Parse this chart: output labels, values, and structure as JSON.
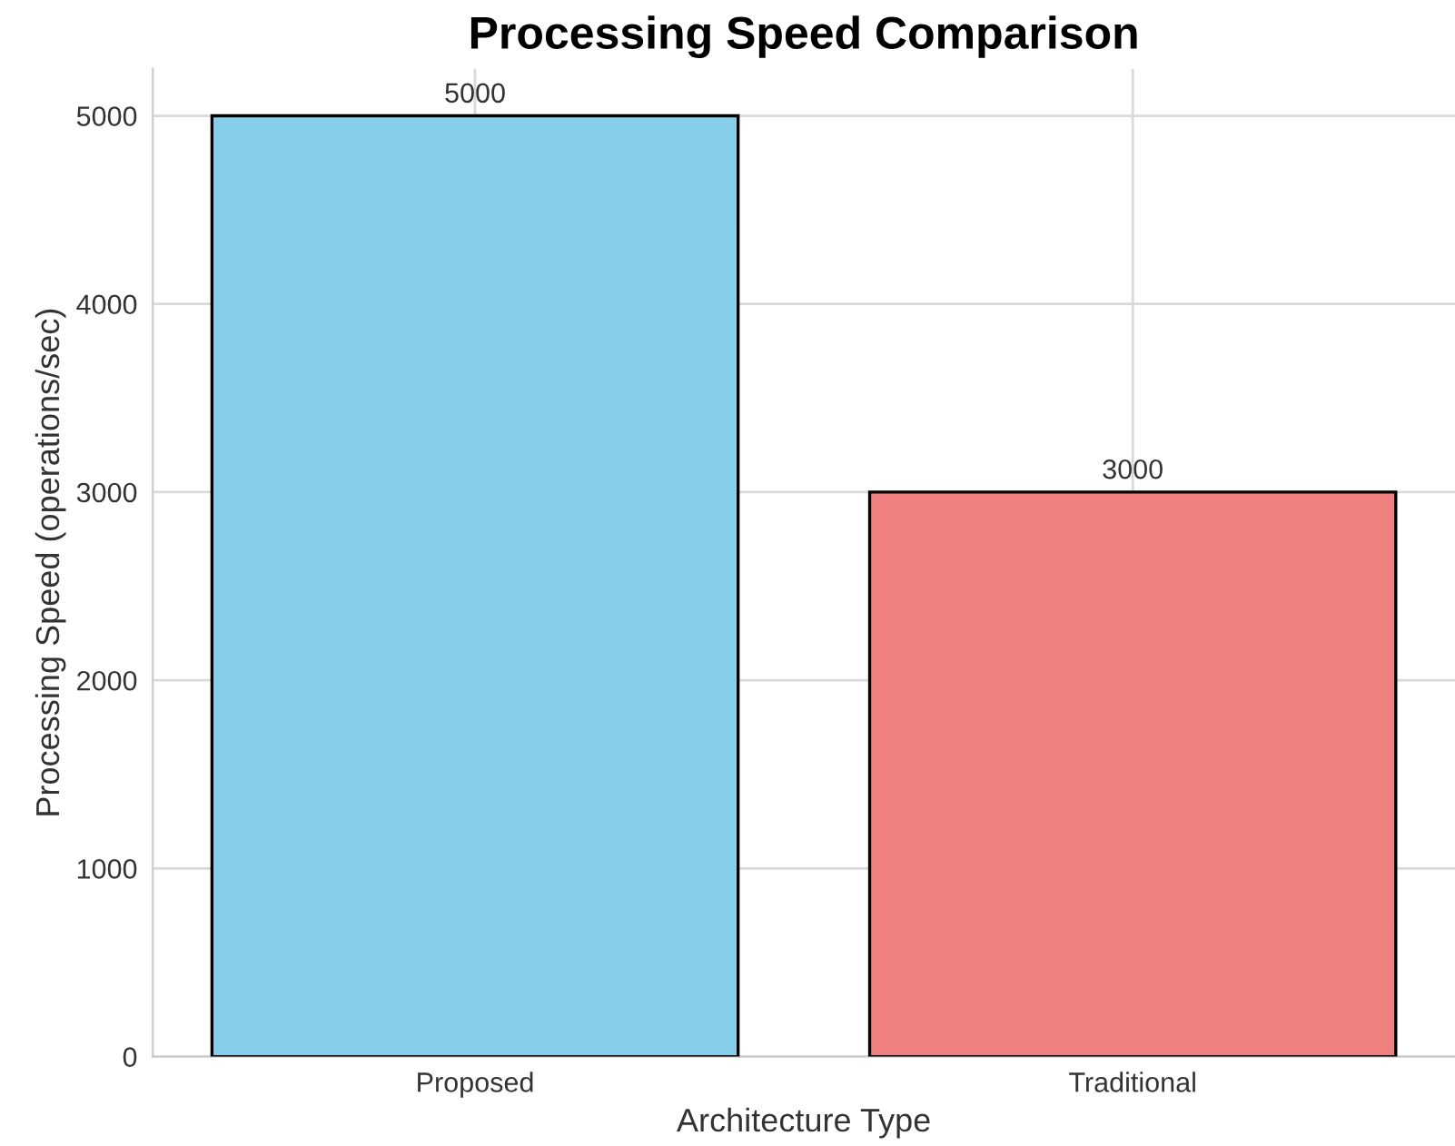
{
  "chart_data": {
    "type": "bar",
    "title": "Processing Speed Comparison",
    "xlabel": "Architecture Type",
    "ylabel": "Processing Speed (operations/sec)",
    "categories": [
      "Proposed",
      "Traditional"
    ],
    "values": [
      5000,
      3000
    ],
    "colors": [
      "#87ceeb",
      "#f08080"
    ],
    "ylim": [
      0,
      5250
    ],
    "yticks": [
      0,
      1000,
      2000,
      3000,
      4000,
      5000
    ],
    "grid": true,
    "data_labels": true
  }
}
